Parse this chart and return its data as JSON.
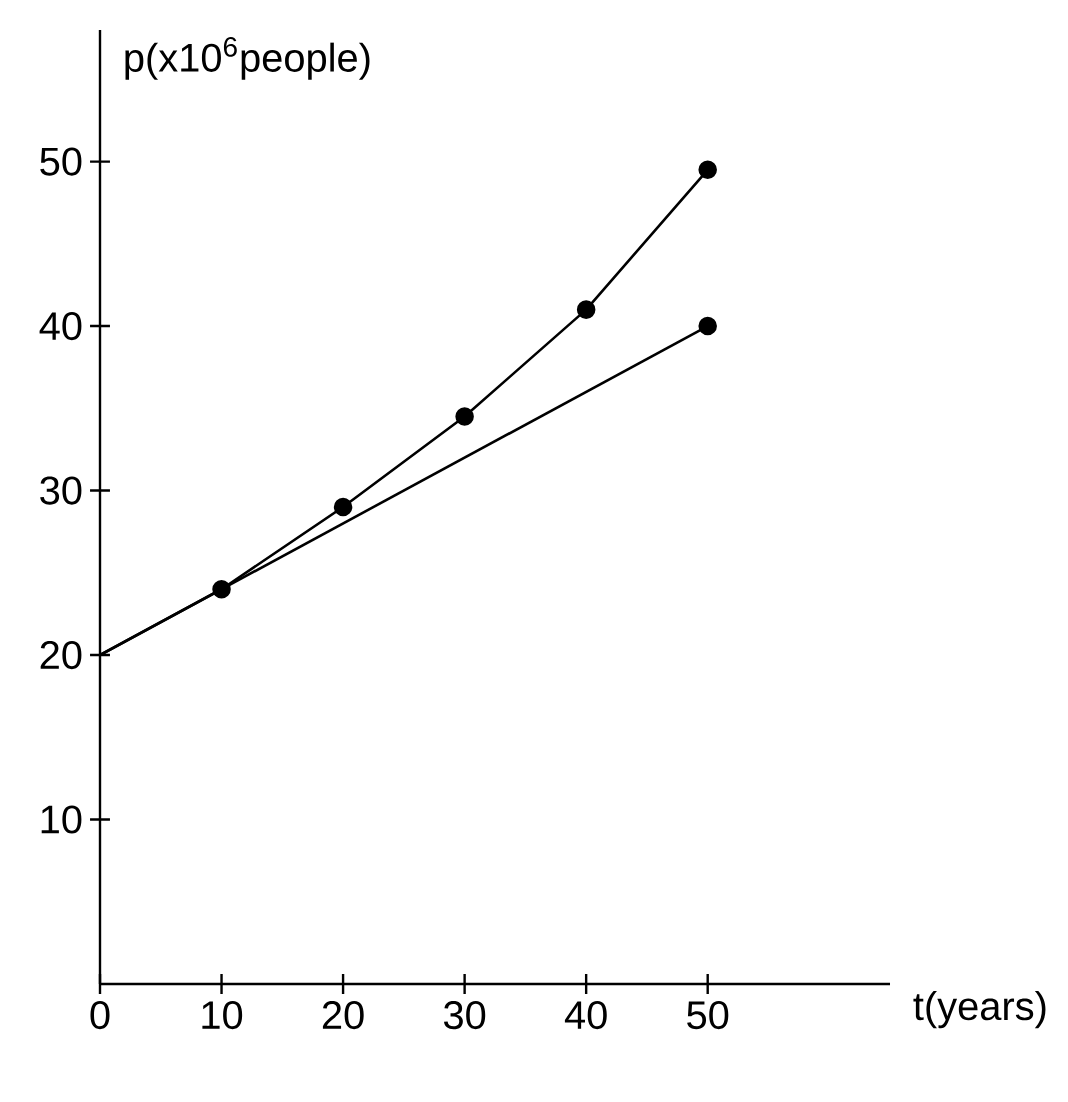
{
  "chart_data": {
    "type": "line",
    "xlabel": "t(years)",
    "ylabel": "p(x10$^{6}$people)",
    "xlim": [
      0,
      65
    ],
    "ylim": [
      0,
      58
    ],
    "xticks": [
      0,
      10,
      20,
      30,
      40,
      50
    ],
    "yticks": [
      10,
      20,
      30,
      40,
      50
    ],
    "grid": false,
    "marker": "circle",
    "line_style": "solid",
    "series": [
      {
        "color": "#000000",
        "x": [
          0,
          10,
          20,
          30,
          40,
          50
        ],
        "values": [
          20,
          24,
          29,
          34.5,
          41,
          49.5
        ]
      },
      {
        "color": "#000000",
        "x": [
          0,
          50
        ],
        "values": [
          20,
          40
        ]
      }
    ]
  }
}
